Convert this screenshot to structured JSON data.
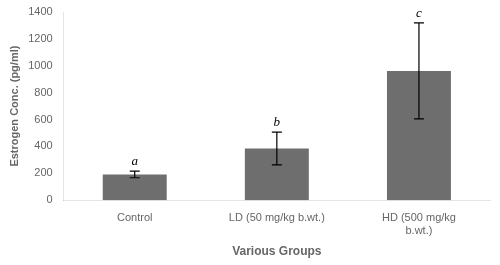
{
  "chart_data": {
    "type": "bar",
    "categories": [
      "Control",
      "LD (50 mg/kg b.wt.)",
      "HD (500 mg/kg\nb.wt.)"
    ],
    "values": [
      192,
      385,
      962
    ],
    "errors": [
      25,
      122,
      357
    ],
    "color": "#6e6e6e",
    "annotations": [
      "a",
      "b",
      "c"
    ],
    "xlabel": "Various Groups",
    "ylabel": "Estrogen Conc. (pg/ml)",
    "ylim": [
      0,
      1400
    ],
    "yticks": [
      0,
      200,
      400,
      600,
      800,
      1000,
      1200,
      1400
    ],
    "grid": false
  }
}
